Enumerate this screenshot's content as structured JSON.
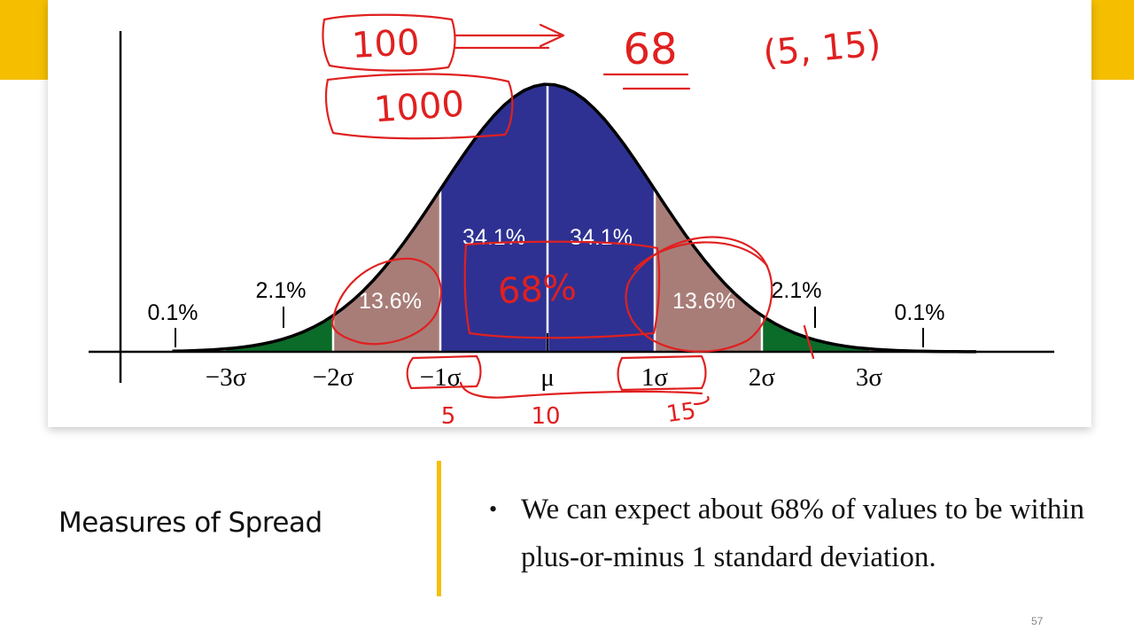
{
  "slide": {
    "title": "Measures of Spread",
    "bullets": [
      "We can expect about 68% of values to be within plus-or-minus 1 standard deviation."
    ],
    "page_number": "57"
  },
  "colors": {
    "accent": "#F5BF00",
    "center_band": "#2E3192",
    "second_band": "#A87D78",
    "third_band": "#0B6B29",
    "annotation": "#E02020"
  },
  "chart_data": {
    "type": "area",
    "distribution": "normal",
    "axis_ticks": [
      {
        "label": "−3σ",
        "value": -3
      },
      {
        "label": "−2σ",
        "value": -2
      },
      {
        "label": "−1σ",
        "value": -1
      },
      {
        "label": "μ",
        "value": 0
      },
      {
        "label": "1σ",
        "value": 1
      },
      {
        "label": "2σ",
        "value": 2
      },
      {
        "label": "3σ",
        "value": 3
      }
    ],
    "regions": [
      {
        "from": -1,
        "to": 0,
        "percent": "34.1%",
        "color": "#2E3192"
      },
      {
        "from": 0,
        "to": 1,
        "percent": "34.1%",
        "color": "#2E3192"
      },
      {
        "from": -2,
        "to": -1,
        "percent": "13.6%",
        "color": "#A87D78"
      },
      {
        "from": 1,
        "to": 2,
        "percent": "13.6%",
        "color": "#A87D78"
      },
      {
        "from": -3,
        "to": -2,
        "percent": "2.1%",
        "color": "#0B6B29"
      },
      {
        "from": 2,
        "to": 3,
        "percent": "2.1%",
        "color": "#0B6B29"
      }
    ],
    "tail_labels": [
      {
        "side": "left",
        "percent": "0.1%"
      },
      {
        "side": "right",
        "percent": "0.1%"
      }
    ],
    "xlim": [
      -3.5,
      4.0
    ],
    "annotations": [
      "100",
      "1000",
      "68",
      "(5, 15)",
      "68%",
      "5",
      "10",
      "15"
    ]
  }
}
